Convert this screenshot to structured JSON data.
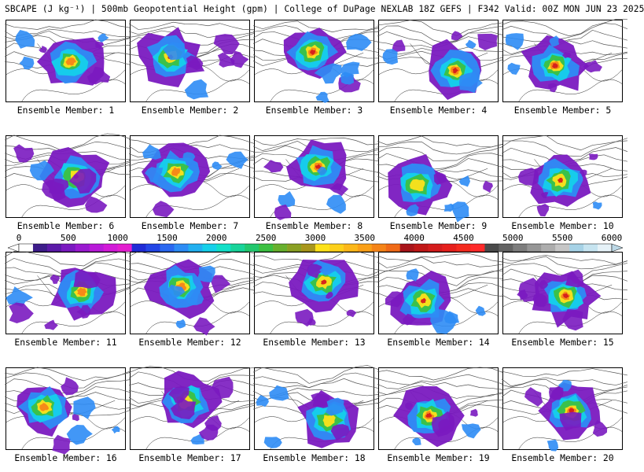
{
  "header": {
    "title": "SBCAPE (J kg⁻¹) | 500mb Geopotential Height (gpm) | College of DuPage NEXLAB 18Z GEFS | F342 Valid: 00Z MON JUN 23 2025"
  },
  "colorbar": {
    "ticks": [
      "0",
      "500",
      "1000",
      "1500",
      "2000",
      "2500",
      "3000",
      "3500",
      "4000",
      "4500",
      "5000",
      "5500",
      "6000"
    ],
    "min": 0,
    "max": 6000,
    "colors": [
      "#ffffff",
      "#3d1d8a",
      "#5b1aa8",
      "#7a1ac0",
      "#9a1ad0",
      "#b81ad8",
      "#d21ad8",
      "#e31ecf",
      "#1f2bd6",
      "#2346e6",
      "#2a68f0",
      "#2d8cf5",
      "#22b0f0",
      "#15d0ea",
      "#12e0c8",
      "#18d49a",
      "#22c86e",
      "#3cc042",
      "#68b02e",
      "#8aa024",
      "#a8961c",
      "#fde21a",
      "#fdd01a",
      "#fcb81a",
      "#faa018",
      "#f58418",
      "#f06a18",
      "#a8141a",
      "#c01818",
      "#d41c1c",
      "#e6201c",
      "#f42a1e",
      "#ff2a2a",
      "#4a4a4a",
      "#646464",
      "#7d7d7d",
      "#969696",
      "#adadad",
      "#c6c6c6",
      "#a6d2e6",
      "#c6e4f0",
      "#e6f2f8"
    ]
  },
  "legend_colors": {
    "purple": "#7a1ac0",
    "blue": "#2d8cf5",
    "cyan": "#15d0ea",
    "green": "#3cc042",
    "yellow": "#fde21a",
    "orange": "#f58418",
    "red": "#d41c1c"
  },
  "panels": [
    {
      "label": "Ensemble Member: 1"
    },
    {
      "label": "Ensemble Member: 2"
    },
    {
      "label": "Ensemble Member: 3"
    },
    {
      "label": "Ensemble Member: 4"
    },
    {
      "label": "Ensemble Member: 5"
    },
    {
      "label": "Ensemble Member: 6"
    },
    {
      "label": "Ensemble Member: 7"
    },
    {
      "label": "Ensemble Member: 8"
    },
    {
      "label": "Ensemble Member: 9"
    },
    {
      "label": "Ensemble Member: 10"
    },
    {
      "label": "Ensemble Member: 11"
    },
    {
      "label": "Ensemble Member: 12"
    },
    {
      "label": "Ensemble Member: 13"
    },
    {
      "label": "Ensemble Member: 14"
    },
    {
      "label": "Ensemble Member: 15"
    },
    {
      "label": "Ensemble Member: 16"
    },
    {
      "label": "Ensemble Member: 17"
    },
    {
      "label": "Ensemble Member: 18"
    },
    {
      "label": "Ensemble Member: 19"
    },
    {
      "label": "Ensemble Member: 20"
    }
  ]
}
